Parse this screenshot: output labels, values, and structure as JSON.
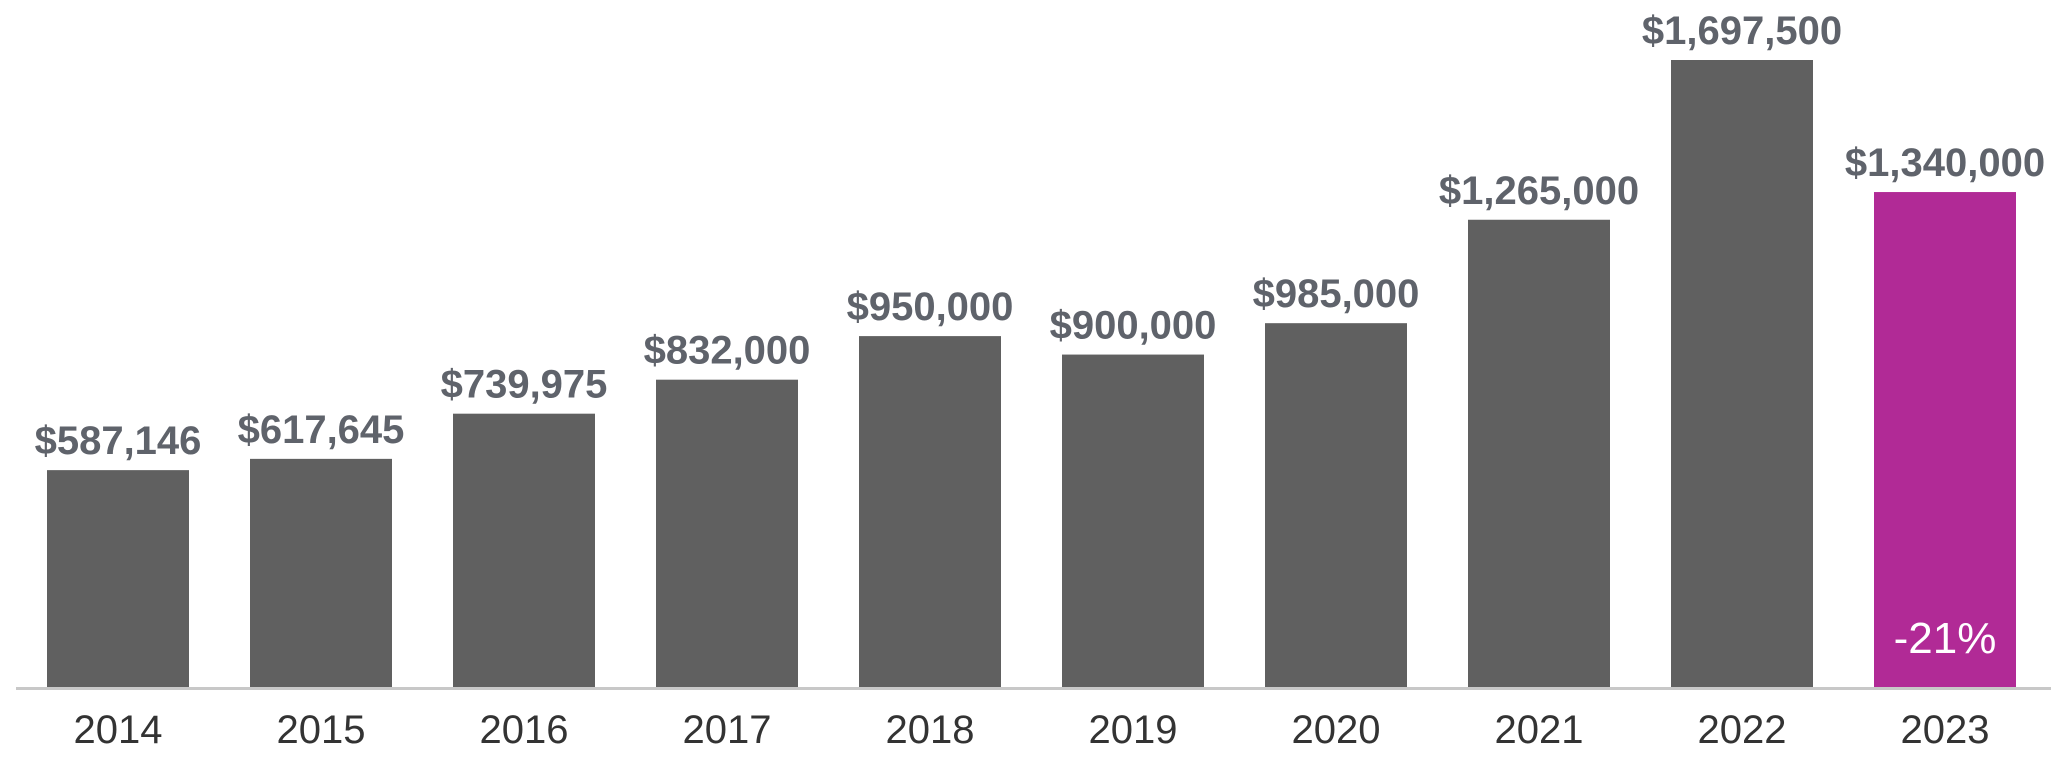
{
  "chart_data": {
    "type": "bar",
    "categories": [
      "2014",
      "2015",
      "2016",
      "2017",
      "2018",
      "2019",
      "2020",
      "2021",
      "2022",
      "2023"
    ],
    "values": [
      587146,
      617645,
      739975,
      832000,
      950000,
      900000,
      985000,
      1265000,
      1697500,
      1340000
    ],
    "value_labels": [
      "$587,146",
      "$617,645",
      "$739,975",
      "$832,000",
      "$950,000",
      "$900,000",
      "$985,000",
      "$1,265,000",
      "$1,697,500",
      "$1,340,000"
    ],
    "highlight_index": 9,
    "highlight_annotation": "-21%",
    "ylim": [
      0,
      1697500
    ],
    "grid": false,
    "legend": "none",
    "colors": {
      "bar": "#606060",
      "highlight": "#b12a96",
      "baseline": "#c8c8c8",
      "value_text": "#5f636b",
      "tick_text": "#333333",
      "annotation_text": "#ffffff"
    }
  }
}
